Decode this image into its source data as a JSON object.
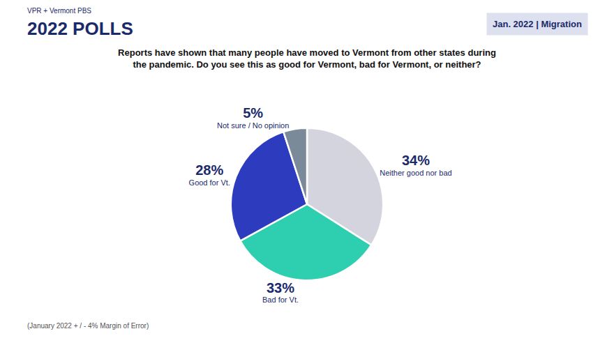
{
  "chart_data": {
    "type": "pie",
    "title": "Reports have shown that many people have moved to Vermont from other states during\nthe pandemic. Do you see this as good for Vermont, bad for Vermont, or neither?",
    "categories": [
      "Neither good nor bad",
      "Bad for Vt.",
      "Good for Vt.",
      "Not sure / No opinion"
    ],
    "values": [
      34,
      33,
      28,
      5
    ],
    "value_labels": [
      "34%",
      "33%",
      "28%",
      "5%"
    ],
    "data_labels": true,
    "colors": [
      "#d4d4df",
      "#2ecfb1",
      "#2d3cbf",
      "#7a8a99"
    ],
    "annotations": [
      "VPR + Vermont PBS",
      "2022 POLLS",
      "Jan. 2022 | Migration",
      "(January 2022 + / - 4% Margin of Error)"
    ]
  }
}
